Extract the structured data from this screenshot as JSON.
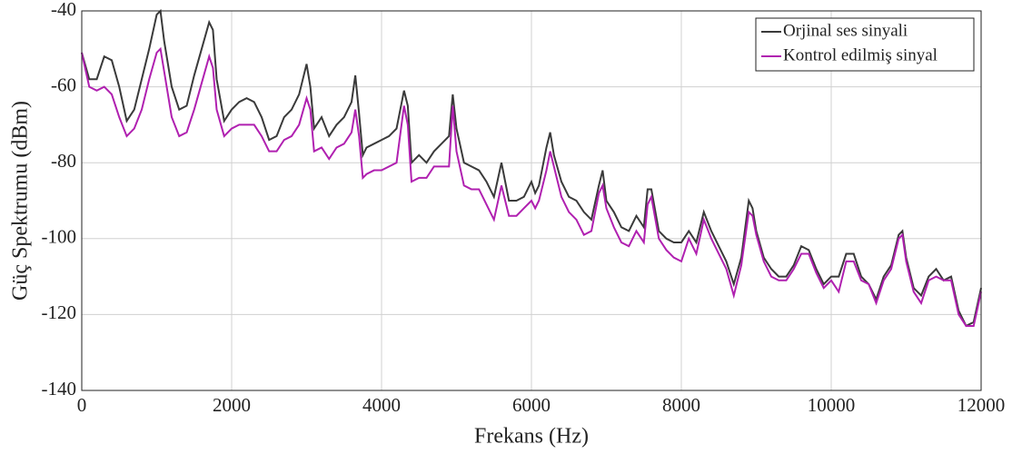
{
  "chart_data": {
    "type": "line",
    "xlabel": "Frekans (Hz)",
    "ylabel": "Güç Spektrumu (dBm)",
    "xlim": [
      0,
      12000
    ],
    "ylim": [
      -140,
      -40
    ],
    "xticks": [
      0,
      2000,
      4000,
      6000,
      8000,
      10000,
      12000
    ],
    "yticks": [
      -140,
      -120,
      -100,
      -80,
      -60,
      -40
    ],
    "grid": true,
    "legend": "upper right",
    "x": [
      0,
      100,
      200,
      300,
      400,
      500,
      600,
      700,
      800,
      900,
      1000,
      1050,
      1100,
      1200,
      1300,
      1400,
      1500,
      1600,
      1700,
      1750,
      1800,
      1900,
      2000,
      2100,
      2200,
      2300,
      2400,
      2500,
      2600,
      2700,
      2800,
      2900,
      3000,
      3050,
      3100,
      3200,
      3300,
      3400,
      3500,
      3600,
      3650,
      3700,
      3750,
      3800,
      3900,
      4000,
      4100,
      4200,
      4300,
      4350,
      4400,
      4500,
      4600,
      4700,
      4800,
      4900,
      4950,
      5000,
      5100,
      5200,
      5300,
      5400,
      5500,
      5600,
      5700,
      5800,
      5900,
      6000,
      6050,
      6100,
      6200,
      6250,
      6300,
      6400,
      6500,
      6600,
      6700,
      6800,
      6900,
      6950,
      7000,
      7100,
      7200,
      7300,
      7400,
      7500,
      7550,
      7600,
      7700,
      7800,
      7900,
      8000,
      8100,
      8200,
      8300,
      8400,
      8500,
      8600,
      8700,
      8800,
      8900,
      8950,
      9000,
      9100,
      9200,
      9300,
      9400,
      9500,
      9600,
      9700,
      9800,
      9900,
      10000,
      10100,
      10200,
      10300,
      10400,
      10500,
      10600,
      10700,
      10800,
      10900,
      10950,
      11000,
      11100,
      11200,
      11300,
      11400,
      11500,
      11600,
      11700,
      11800,
      11900,
      12000
    ],
    "series": [
      {
        "name": "Orjinal ses sinyali",
        "color": "#3a3a3a",
        "values": [
          -51,
          -58,
          -58,
          -52,
          -53,
          -60,
          -69,
          -66,
          -58,
          -50,
          -41,
          -40,
          -48,
          -60,
          -66,
          -65,
          -57,
          -50,
          -43,
          -45,
          -58,
          -69,
          -66,
          -64,
          -63,
          -64,
          -68,
          -74,
          -73,
          -68,
          -66,
          -62,
          -54,
          -60,
          -71,
          -68,
          -73,
          -70,
          -68,
          -64,
          -57,
          -67,
          -78,
          -76,
          -75,
          -74,
          -73,
          -71,
          -61,
          -65,
          -80,
          -78,
          -80,
          -77,
          -75,
          -73,
          -62,
          -71,
          -80,
          -81,
          -82,
          -85,
          -89,
          -80,
          -90,
          -90,
          -89,
          -85,
          -88,
          -86,
          -76,
          -72,
          -78,
          -85,
          -89,
          -90,
          -93,
          -95,
          -86,
          -82,
          -90,
          -93,
          -97,
          -98,
          -94,
          -97,
          -87,
          -87,
          -98,
          -100,
          -101,
          -101,
          -98,
          -101,
          -93,
          -98,
          -102,
          -106,
          -112,
          -105,
          -90,
          -92,
          -98,
          -105,
          -108,
          -110,
          -110,
          -107,
          -102,
          -103,
          -108,
          -112,
          -110,
          -110,
          -104,
          -104,
          -110,
          -112,
          -116,
          -110,
          -107,
          -99,
          -98,
          -105,
          -113,
          -115,
          -110,
          -108,
          -111,
          -110,
          -119,
          -123,
          -122,
          -113
        ]
      },
      {
        "name": "Kontrol edilmiş sinyal",
        "color": "#b020b0",
        "values": [
          -51,
          -60,
          -61,
          -60,
          -62,
          -68,
          -73,
          -71,
          -66,
          -58,
          -51,
          -50,
          -56,
          -68,
          -73,
          -72,
          -66,
          -59,
          -52,
          -55,
          -66,
          -73,
          -71,
          -70,
          -70,
          -70,
          -73,
          -77,
          -77,
          -74,
          -73,
          -70,
          -63,
          -66,
          -77,
          -76,
          -79,
          -76,
          -75,
          -72,
          -66,
          -73,
          -84,
          -83,
          -82,
          -82,
          -81,
          -80,
          -65,
          -70,
          -85,
          -84,
          -84,
          -81,
          -81,
          -81,
          -65,
          -77,
          -86,
          -87,
          -87,
          -91,
          -95,
          -86,
          -94,
          -94,
          -92,
          -90,
          -92,
          -90,
          -82,
          -77,
          -81,
          -89,
          -93,
          -95,
          -99,
          -98,
          -88,
          -86,
          -92,
          -97,
          -101,
          -102,
          -98,
          -101,
          -91,
          -89,
          -100,
          -103,
          -105,
          -106,
          -100,
          -104,
          -95,
          -100,
          -104,
          -108,
          -115,
          -107,
          -93,
          -94,
          -99,
          -106,
          -110,
          -111,
          -111,
          -108,
          -104,
          -104,
          -109,
          -113,
          -111,
          -114,
          -106,
          -106,
          -111,
          -112,
          -117,
          -111,
          -108,
          -100,
          -99,
          -106,
          -114,
          -117,
          -111,
          -110,
          -111,
          -111,
          -120,
          -123,
          -123,
          -114
        ]
      }
    ]
  }
}
